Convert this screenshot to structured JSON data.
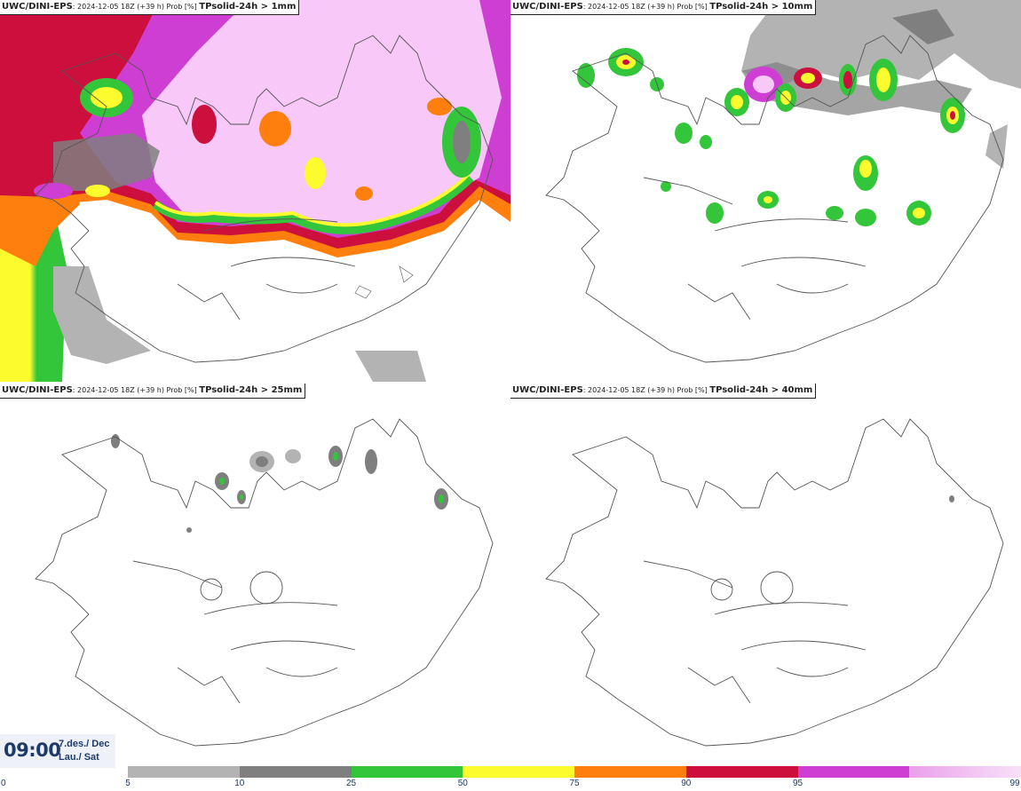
{
  "panels": [
    {
      "model": "UWC/DINI-EPS",
      "run": "2024-12-05 18Z (+39 h)",
      "prob": "Prob [%]",
      "param": "TPsolid-24h > 1mm"
    },
    {
      "model": "UWC/DINI-EPS",
      "run": "2024-12-05 18Z (+39 h)",
      "prob": "Prob [%]",
      "param": "TPsolid-24h > 10mm"
    },
    {
      "model": "UWC/DINI-EPS",
      "run": "2024-12-05 18Z (+39 h)",
      "prob": "Prob [%]",
      "param": "TPsolid-24h > 25mm"
    },
    {
      "model": "UWC/DINI-EPS",
      "run": "2024-12-05 18Z (+39 h)",
      "prob": "Prob [%]",
      "param": "TPsolid-24h > 40mm"
    }
  ],
  "valid_time": {
    "clock": "09:00",
    "date_line1": "7.des./ Dec",
    "date_line2": "Lau./ Sat"
  },
  "legend": {
    "zero_label": "0",
    "ticks": [
      "5",
      "10",
      "25",
      "50",
      "75",
      "90",
      "95",
      "99"
    ],
    "colors": [
      "#b3b3b3",
      "#7f7f7f",
      "#33c63b",
      "#fbfb2e",
      "#ff7f0e",
      "#cc0f3c",
      "#cf3ed3",
      "#f8c8f8"
    ]
  }
}
